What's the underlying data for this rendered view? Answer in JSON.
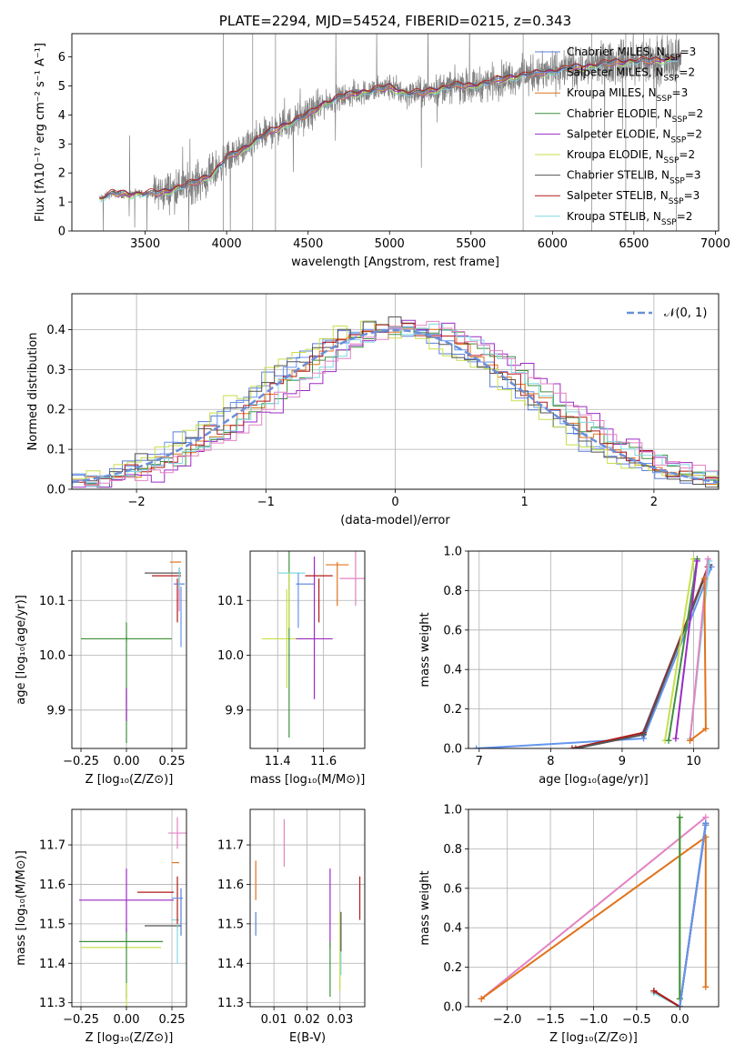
{
  "colors": {
    "Chabrier MILES": "#5b7fd6",
    "Salpeter MILES": "#6495ed",
    "Kroupa MILES": "#e0731b",
    "Chabrier ELODIE": "#3f8f3f",
    "Salpeter ELODIE": "#9b2bc4",
    "Kroupa ELODIE": "#c7df4a",
    "Chabrier STELIB": "#555555",
    "Salpeter STELIB": "#b21a1a",
    "Kroupa STELIB": "#7fd9e0",
    "Pink": "#e383c4",
    "Data": "#808080",
    "Normal": "#6a8fd8"
  },
  "chart_data": [
    {
      "id": "spectrum",
      "type": "line",
      "title": "PLATE=2294, MJD=54524, FIBERID=0215, z=0.343",
      "xlabel": "wavelength [Angstrom, rest frame]",
      "ylabel": "Flux [fλ10⁻¹⁷ erg cm⁻² s⁻¹ A⁻¹]",
      "xlim": [
        3050,
        7020
      ],
      "ylim": [
        0,
        6.8
      ],
      "xticks": [
        3500,
        4000,
        4500,
        5000,
        5500,
        6000,
        6500,
        7000
      ],
      "yticks": [
        0,
        1,
        2,
        3,
        4,
        5,
        6
      ],
      "legend": [
        {
          "label": "Chabrier MILES, N",
          "sub": "SSP",
          "suffix": "=3",
          "color": "Chabrier MILES"
        },
        {
          "label": "Salpeter MILES, N",
          "sub": "SSP",
          "suffix": "=2",
          "color": "Salpeter MILES"
        },
        {
          "label": "Kroupa MILES, N",
          "sub": "SSP",
          "suffix": "=3",
          "color": "Kroupa MILES"
        },
        {
          "label": "Chabrier ELODIE, N",
          "sub": "SSP",
          "suffix": "=2",
          "color": "Chabrier ELODIE"
        },
        {
          "label": "Salpeter ELODIE, N",
          "sub": "SSP",
          "suffix": "=2",
          "color": "Salpeter ELODIE"
        },
        {
          "label": "Kroupa ELODIE, N",
          "sub": "SSP",
          "suffix": "=2",
          "color": "Kroupa ELODIE"
        },
        {
          "label": "Chabrier STELIB, N",
          "sub": "SSP",
          "suffix": "=3",
          "color": "Chabrier STELIB"
        },
        {
          "label": "Salpeter STELIB, N",
          "sub": "SSP",
          "suffix": "=3",
          "color": "Salpeter STELIB"
        },
        {
          "label": "Kroupa STELIB, N",
          "sub": "SSP",
          "suffix": "=2",
          "color": "Kroupa STELIB"
        }
      ],
      "continuum": {
        "x": [
          3220,
          3300,
          3400,
          3500,
          3600,
          3700,
          3800,
          3900,
          3950,
          4000,
          4100,
          4200,
          4300,
          4400,
          4500,
          4600,
          4700,
          4800,
          4900,
          5000,
          5100,
          5200,
          5300,
          5400,
          5500,
          5600,
          5700,
          5800,
          5900,
          6000,
          6100,
          6200,
          6300,
          6400,
          6500,
          6600,
          6700,
          6790
        ],
        "y": [
          1.1,
          1.3,
          1.25,
          1.3,
          1.3,
          1.5,
          1.65,
          1.9,
          2.2,
          2.5,
          2.8,
          3.2,
          3.5,
          3.75,
          4.0,
          4.4,
          4.6,
          4.75,
          4.85,
          4.95,
          4.75,
          4.75,
          4.9,
          5.0,
          5.0,
          5.1,
          5.25,
          5.35,
          5.4,
          5.5,
          5.6,
          5.65,
          5.75,
          5.8,
          5.85,
          5.85,
          5.9,
          5.95
        ]
      }
    },
    {
      "id": "residuals",
      "type": "histogram",
      "xlabel": "(data-model)/error",
      "ylabel": "Normed distribution",
      "xlim": [
        -2.5,
        2.5
      ],
      "ylim": [
        0,
        0.49
      ],
      "xticks": [
        -2,
        -1,
        0,
        1,
        2
      ],
      "yticks": [
        0.0,
        0.1,
        0.2,
        0.3,
        0.4
      ],
      "legend": [
        {
          "label": "𝒩(0, 1)"
        }
      ],
      "normal_mu": 0,
      "normal_sigma": 1
    },
    {
      "id": "age-vs-Z",
      "type": "errorbar",
      "xlabel": "Z [log₁₀(Z/Z⊙)]",
      "ylabel": "age  [log₁₀(age/yr)]",
      "xlim": [
        -0.3,
        0.33
      ],
      "ylim": [
        9.83,
        10.19
      ],
      "xticks": [
        -0.25,
        0.0,
        0.25
      ],
      "yticks": [
        9.9,
        10.0,
        10.1
      ],
      "points": [
        {
          "x": -0.01,
          "y": 10.03,
          "xerr": 0.24,
          "yerr": 0.0,
          "color": "Kroupa ELODIE"
        },
        {
          "x": 0.0,
          "y": 10.03,
          "xerr": 0.25,
          "yerr": 0.005,
          "color": "Chabrier ELODIE"
        },
        {
          "x": 0.0,
          "y": 9.95,
          "xerr": 0.0,
          "yerr": 0.11,
          "color": "Chabrier ELODIE"
        },
        {
          "x": 0.0,
          "y": 9.91,
          "xerr": 0.0,
          "yerr": 0.03,
          "color": "Salpeter ELODIE"
        },
        {
          "x": 0.2,
          "y": 10.15,
          "xerr": 0.1,
          "yerr": 0.0,
          "color": "Chabrier STELIB"
        },
        {
          "x": 0.22,
          "y": 10.145,
          "xerr": 0.08,
          "yerr": 0.0,
          "color": "Salpeter STELIB"
        },
        {
          "x": 0.27,
          "y": 10.17,
          "xerr": 0.03,
          "yerr": 0.0,
          "color": "Kroupa MILES"
        },
        {
          "x": 0.28,
          "y": 10.1,
          "xerr": 0.0,
          "yerr": 0.04,
          "color": "Salpeter STELIB"
        },
        {
          "x": 0.29,
          "y": 10.13,
          "xerr": 0.03,
          "yerr": 0.03,
          "color": "Chabrier MILES"
        },
        {
          "x": 0.3,
          "y": 10.07,
          "xerr": 0.0,
          "yerr": 0.055,
          "color": "Salpeter MILES"
        },
        {
          "x": 0.29,
          "y": 10.12,
          "xerr": 0.0,
          "yerr": 0.04,
          "color": "Pink"
        },
        {
          "x": 0.29,
          "y": 10.14,
          "xerr": 0.0,
          "yerr": 0.02,
          "color": "Kroupa STELIB"
        }
      ]
    },
    {
      "id": "age-vs-mass",
      "type": "errorbar",
      "xlabel": "mass [log₁₀(M/M⊙)]",
      "ylabel": "",
      "xlim": [
        11.28,
        11.78
      ],
      "ylim": [
        9.83,
        10.19
      ],
      "xticks": [
        11.4,
        11.6
      ],
      "yticks": [
        9.9,
        10.0,
        10.1
      ],
      "points": [
        {
          "x": 11.44,
          "y": 10.03,
          "xerr": 0.11,
          "yerr": 0.0,
          "color": "Kroupa ELODIE"
        },
        {
          "x": 11.44,
          "y": 10.03,
          "xerr": 0.0,
          "yerr": 0.09,
          "color": "Kroupa ELODIE"
        },
        {
          "x": 11.45,
          "y": 10.02,
          "xerr": 0.0,
          "yerr": 0.17,
          "color": "Chabrier ELODIE"
        },
        {
          "x": 11.46,
          "y": 10.15,
          "xerr": 0.06,
          "yerr": 0.0,
          "color": "Kroupa STELIB"
        },
        {
          "x": 11.45,
          "y": 10.1,
          "xerr": 0.0,
          "yerr": 0.05,
          "color": "Kroupa ELODIE"
        },
        {
          "x": 11.49,
          "y": 10.1,
          "xerr": 0.0,
          "yerr": 0.05,
          "color": "Salpeter MILES"
        },
        {
          "x": 11.52,
          "y": 10.13,
          "xerr": 0.04,
          "yerr": 0.0,
          "color": "Chabrier MILES"
        },
        {
          "x": 11.56,
          "y": 10.03,
          "xerr": 0.08,
          "yerr": 0.0,
          "color": "Salpeter ELODIE"
        },
        {
          "x": 11.56,
          "y": 10.05,
          "xerr": 0.0,
          "yerr": 0.13,
          "color": "Salpeter ELODIE"
        },
        {
          "x": 11.58,
          "y": 10.145,
          "xerr": 0.06,
          "yerr": 0.0,
          "color": "Salpeter STELIB"
        },
        {
          "x": 11.58,
          "y": 10.1,
          "xerr": 0.0,
          "yerr": 0.04,
          "color": "Salpeter STELIB"
        },
        {
          "x": 11.66,
          "y": 10.13,
          "xerr": 0.0,
          "yerr": 0.04,
          "color": "Kroupa MILES"
        },
        {
          "x": 11.66,
          "y": 10.165,
          "xerr": 0.05,
          "yerr": 0.0,
          "color": "Kroupa MILES"
        },
        {
          "x": 11.74,
          "y": 10.14,
          "xerr": 0.07,
          "yerr": 0.05,
          "color": "Pink"
        }
      ]
    },
    {
      "id": "weight-vs-age",
      "type": "line",
      "xlabel": "age  [log₁₀(age/yr)]",
      "ylabel": "mass weight",
      "xlim": [
        6.85,
        10.35
      ],
      "ylim": [
        0,
        1
      ],
      "xticks": [
        7,
        8,
        9,
        10
      ],
      "yticks": [
        0.0,
        0.2,
        0.4,
        0.6,
        0.8,
        1.0
      ],
      "series": [
        {
          "color": "Salpeter MILES",
          "x": [
            6.96,
            9.3,
            10.25
          ],
          "y": [
            0.0,
            0.05,
            0.92
          ]
        },
        {
          "color": "Chabrier MILES",
          "x": [
            9.28,
            10.22
          ],
          "y": [
            0.07,
            0.93
          ]
        },
        {
          "color": "Salpeter STELIB",
          "x": [
            8.3,
            9.3,
            10.2
          ],
          "y": [
            0.0,
            0.08,
            0.92
          ]
        },
        {
          "color": "Chabrier STELIB",
          "x": [
            8.35,
            9.3,
            10.22
          ],
          "y": [
            0.0,
            0.07,
            0.93
          ]
        },
        {
          "color": "Kroupa STELIB",
          "x": [
            9.95,
            10.22
          ],
          "y": [
            0.05,
            0.95
          ]
        },
        {
          "color": "Kroupa ELODIE",
          "x": [
            9.6,
            10.0
          ],
          "y": [
            0.04,
            0.96
          ]
        },
        {
          "color": "Chabrier ELODIE",
          "x": [
            9.65,
            10.05
          ],
          "y": [
            0.04,
            0.96
          ]
        },
        {
          "color": "Salpeter ELODIE",
          "x": [
            9.75,
            10.05
          ],
          "y": [
            0.05,
            0.95
          ]
        },
        {
          "color": "Pink",
          "x": [
            9.95,
            10.2
          ],
          "y": [
            0.04,
            0.96
          ]
        },
        {
          "color": "Kroupa MILES",
          "x": [
            9.95,
            10.17,
            10.15
          ],
          "y": [
            0.04,
            0.1,
            0.86
          ]
        }
      ]
    },
    {
      "id": "mass-vs-Z",
      "type": "errorbar",
      "xlabel": "Z [log₁₀(Z/Z⊙)]",
      "ylabel": "mass [log₁₀(M/M⊙)]",
      "xlim": [
        -0.3,
        0.33
      ],
      "ylim": [
        11.29,
        11.79
      ],
      "xticks": [
        -0.25,
        0.0,
        0.25
      ],
      "yticks": [
        11.3,
        11.4,
        11.5,
        11.6,
        11.7
      ],
      "points": [
        {
          "x": -0.03,
          "y": 11.44,
          "xerr": 0.22,
          "yerr": 0.0,
          "color": "Kroupa ELODIE"
        },
        {
          "x": -0.03,
          "y": 11.455,
          "xerr": 0.23,
          "yerr": 0.0,
          "color": "Chabrier ELODIE"
        },
        {
          "x": 0.0,
          "y": 11.4,
          "xerr": 0.0,
          "yerr": 0.09,
          "color": "Chabrier ELODIE"
        },
        {
          "x": 0.0,
          "y": 11.56,
          "xerr": 0.26,
          "yerr": 0.08,
          "color": "Salpeter ELODIE"
        },
        {
          "x": 0.0,
          "y": 11.32,
          "xerr": 0.0,
          "yerr": 0.03,
          "color": "Kroupa ELODIE"
        },
        {
          "x": 0.16,
          "y": 11.58,
          "xerr": 0.1,
          "yerr": 0.0,
          "color": "Salpeter STELIB"
        },
        {
          "x": 0.2,
          "y": 11.495,
          "xerr": 0.1,
          "yerr": 0.0,
          "color": "Chabrier STELIB"
        },
        {
          "x": 0.27,
          "y": 11.51,
          "xerr": 0.02,
          "yerr": 0.0,
          "color": "Kroupa STELIB"
        },
        {
          "x": 0.27,
          "y": 11.655,
          "xerr": 0.02,
          "yerr": 0.0,
          "color": "Kroupa MILES"
        },
        {
          "x": 0.28,
          "y": 11.555,
          "xerr": 0.0,
          "yerr": 0.065,
          "color": "Salpeter STELIB"
        },
        {
          "x": 0.28,
          "y": 11.565,
          "xerr": 0.03,
          "yerr": 0.0,
          "color": "Salpeter MILES"
        },
        {
          "x": 0.3,
          "y": 11.53,
          "xerr": 0.0,
          "yerr": 0.06,
          "color": "Chabrier MILES"
        },
        {
          "x": 0.28,
          "y": 11.73,
          "xerr": 0.05,
          "yerr": 0.04,
          "color": "Pink"
        },
        {
          "x": 0.28,
          "y": 11.45,
          "xerr": 0.0,
          "yerr": 0.05,
          "color": "Kroupa STELIB"
        }
      ]
    },
    {
      "id": "mass-vs-EBV",
      "type": "errorbar",
      "xlabel": "E(B-V)",
      "ylabel": "",
      "xlim": [
        0.0028,
        0.0375
      ],
      "ylim": [
        11.29,
        11.79
      ],
      "xticks": [
        0.01,
        0.02,
        0.03
      ],
      "yticks": [
        11.3,
        11.4,
        11.5,
        11.6,
        11.7
      ],
      "points": [
        {
          "x": 0.0045,
          "y": 11.5,
          "xerr": 0.0,
          "yerr": 0.03,
          "color": "Chabrier MILES"
        },
        {
          "x": 0.0045,
          "y": 11.61,
          "xerr": 0.0,
          "yerr": 0.05,
          "color": "Kroupa MILES"
        },
        {
          "x": 0.0131,
          "y": 11.705,
          "xerr": 0.0,
          "yerr": 0.06,
          "color": "Pink"
        },
        {
          "x": 0.027,
          "y": 11.54,
          "xerr": 0.0,
          "yerr": 0.1,
          "color": "Salpeter ELODIE"
        },
        {
          "x": 0.027,
          "y": 11.385,
          "xerr": 0.0,
          "yerr": 0.07,
          "color": "Chabrier ELODIE"
        },
        {
          "x": 0.03,
          "y": 11.43,
          "xerr": 0.0,
          "yerr": 0.1,
          "color": "Kroupa ELODIE"
        },
        {
          "x": 0.0303,
          "y": 11.45,
          "xerr": 0.0,
          "yerr": 0.08,
          "color": "Kroupa STELIB"
        },
        {
          "x": 0.0303,
          "y": 11.48,
          "xerr": 0.0,
          "yerr": 0.05,
          "color": "Chabrier STELIB"
        },
        {
          "x": 0.036,
          "y": 11.565,
          "xerr": 0.0,
          "yerr": 0.055,
          "color": "Salpeter STELIB"
        }
      ]
    },
    {
      "id": "weight-vs-Z",
      "type": "line",
      "xlabel": "Z [log₁₀(Z/Z⊙)]",
      "ylabel": "mass weight",
      "xlim": [
        -2.45,
        0.45
      ],
      "ylim": [
        0,
        1
      ],
      "xticks": [
        -2.0,
        -1.5,
        -1.0,
        -0.5,
        0.0
      ],
      "yticks": [
        0.0,
        0.2,
        0.4,
        0.6,
        0.8,
        1.0
      ],
      "series": [
        {
          "color": "Pink",
          "x": [
            -2.3,
            0.3
          ],
          "y": [
            0.04,
            0.96
          ]
        },
        {
          "color": "Kroupa MILES",
          "x": [
            -2.3,
            0.3,
            0.3
          ],
          "y": [
            0.04,
            0.86,
            0.1
          ]
        },
        {
          "color": "Kroupa STELIB",
          "x": [
            -0.3,
            0.0,
            0.3
          ],
          "y": [
            0.07,
            0.0,
            0.93
          ]
        },
        {
          "color": "Kroupa ELODIE",
          "x": [
            0.0,
            0.0
          ],
          "y": [
            0.04,
            0.96
          ]
        },
        {
          "color": "Chabrier ELODIE",
          "x": [
            0.0,
            0.0
          ],
          "y": [
            0.04,
            0.96
          ]
        },
        {
          "color": "Chabrier STELIB",
          "x": [
            -0.3,
            0.0,
            0.3
          ],
          "y": [
            0.08,
            0.0,
            0.92
          ]
        },
        {
          "color": "Salpeter STELIB",
          "x": [
            -0.3,
            0.0,
            0.3
          ],
          "y": [
            0.08,
            0.0,
            0.92
          ]
        },
        {
          "color": "Chabrier MILES",
          "x": [
            0.0,
            0.3
          ],
          "y": [
            0.0,
            0.93
          ]
        },
        {
          "color": "Salpeter MILES",
          "x": [
            0.0,
            0.3
          ],
          "y": [
            0.0,
            0.92
          ]
        }
      ]
    }
  ]
}
